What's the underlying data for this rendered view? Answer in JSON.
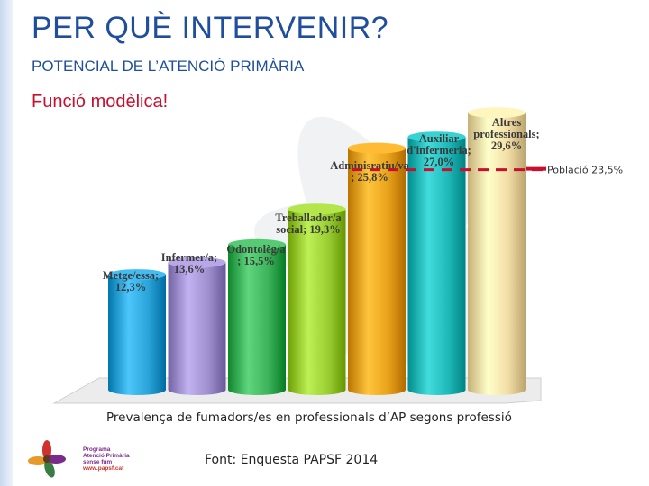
{
  "slide": {
    "title": "PER QUÈ INTERVENIR?",
    "subtitle": "POTENCIAL DE L’ATENCIÓ PRIMÀRIA",
    "heading": "Funció modèlica!",
    "caption": "Prevalença de fumadors/es en professionals d’AP segons professió",
    "source": "Font: Enquesta PAPSF 2014"
  },
  "logo": {
    "line1": "Programa",
    "line2": "Atenció Primària",
    "line3": "sense fum",
    "url": "www.papsf.cat"
  },
  "colors": {
    "title": "#1f4e9c",
    "heading": "#c8102e",
    "reference_line": "#c8102e"
  },
  "chart_data": {
    "type": "bar",
    "style": "3d-cylinder",
    "categories": [
      "Metge/essa",
      "Infermer/a",
      "Odontolèg/a",
      "Treballador/a social",
      "Adminisratiu/va",
      "Auxiliar d'infermeria",
      "Altres professionals"
    ],
    "values": [
      12.3,
      13.6,
      15.5,
      19.3,
      25.8,
      27.0,
      29.6
    ],
    "data_labels": [
      [
        "Metge/essa;",
        "12,3%"
      ],
      [
        "Infermer/a;",
        "13,6%"
      ],
      [
        "Odontolèg/a",
        "; 15,5%"
      ],
      [
        "Treballador/a",
        "social; 19,3%"
      ],
      [
        "Adminisratiu/va",
        "; 25,8%"
      ],
      [
        "Auxiliar",
        "d'infermeria;",
        "27,0%"
      ],
      [
        "Altres",
        "professionals;",
        "29,6%"
      ]
    ],
    "bar_colors": [
      "#29a3d8",
      "#9f8fcf",
      "#3cb35a",
      "#9acd32",
      "#e8a21a",
      "#1fb9b9",
      "#f3dda6"
    ],
    "reference_line": {
      "value": 23.5,
      "label": "Població 23,5%"
    },
    "ylim": [
      0,
      30
    ],
    "grid": false,
    "legend": "none"
  }
}
